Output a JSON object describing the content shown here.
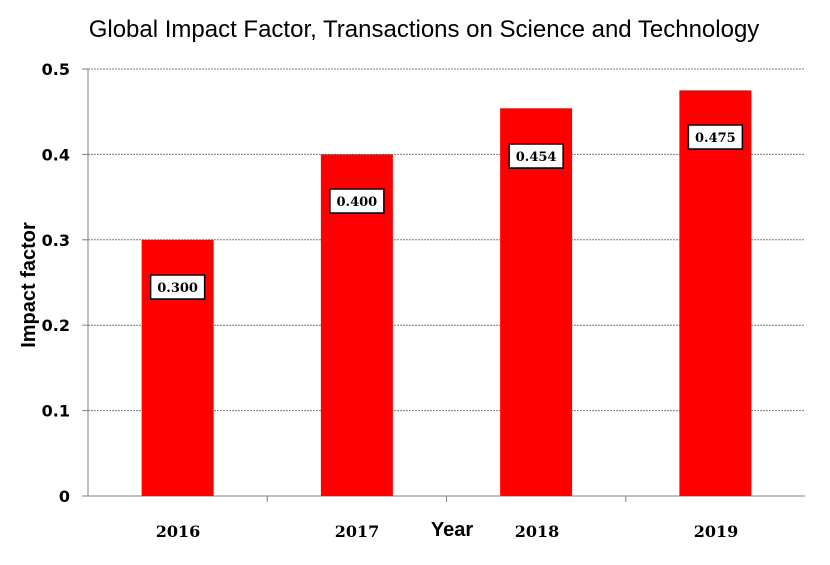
{
  "chart_data": {
    "type": "bar",
    "title": "Global Impact Factor, Transactions on Science and Technology",
    "xlabel": "Year",
    "ylabel": "Impact factor",
    "categories": [
      "2016",
      "2017",
      "2018",
      "2019"
    ],
    "values": [
      0.3,
      0.4,
      0.454,
      0.475
    ],
    "data_labels": [
      "0.300",
      "0.400",
      "0.454",
      "0.475"
    ],
    "ylim": [
      0,
      0.5
    ],
    "yticks": [
      0,
      0.1,
      0.2,
      0.3,
      0.4,
      0.5
    ],
    "ytick_labels": [
      "0",
      "0.1",
      "0.2",
      "0.3",
      "0.4",
      "0.5"
    ],
    "grid": true,
    "legend": "none",
    "bar_color": "#ff0000"
  }
}
